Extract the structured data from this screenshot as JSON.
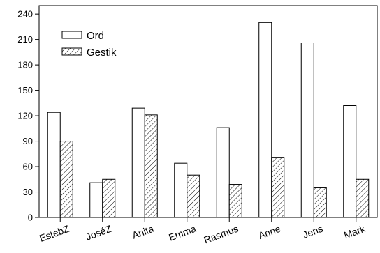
{
  "chart_data": {
    "type": "bar",
    "title": "",
    "xlabel": "",
    "ylabel": "",
    "ylim": [
      0,
      250
    ],
    "yticks": [
      0,
      30,
      60,
      90,
      120,
      150,
      180,
      210,
      240
    ],
    "categories": [
      "EstebZ",
      "JoséZ",
      "Anita",
      "Emma",
      "Rasmus",
      "Anne",
      "Jens",
      "Mark"
    ],
    "series": [
      {
        "name": "Ord",
        "values": [
          124,
          41,
          129,
          64,
          106,
          230,
          206,
          132
        ],
        "pattern": "open"
      },
      {
        "name": "Gestik",
        "values": [
          90,
          45,
          121,
          50,
          39,
          71,
          35,
          45
        ],
        "pattern": "hatched"
      }
    ],
    "grid": false,
    "legend_position": "top-left",
    "colors": {
      "bar_stroke": "#000000",
      "bar_fill": "#ffffff",
      "hatch": "#000000"
    }
  }
}
